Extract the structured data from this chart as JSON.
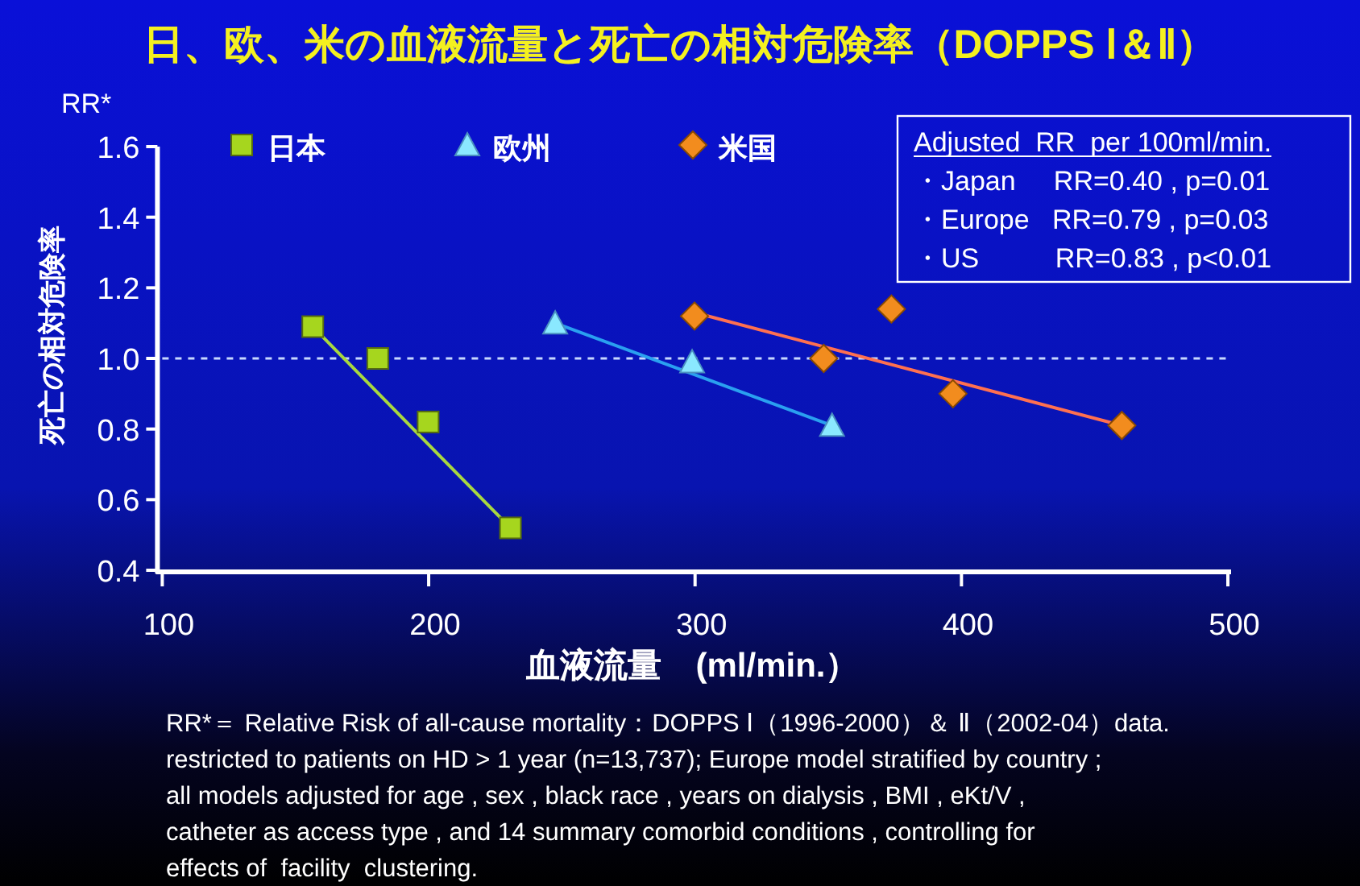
{
  "chart_data": {
    "type": "scatter",
    "title": "日、欧、米の血液流量と死亡の相対危険率（DOPPS Ⅰ＆Ⅱ）",
    "xlabel": "血液流量　(ml/min.）",
    "ylabel": "死亡の相対危険率",
    "xlim": [
      100,
      500
    ],
    "ylim": [
      0.4,
      1.6
    ],
    "xticks": [
      100,
      200,
      300,
      400,
      500
    ],
    "yticks": [
      {
        "value": 0.4,
        "label": "0.4"
      },
      {
        "value": 0.6,
        "label": "0.6"
      },
      {
        "value": 0.8,
        "label": "0.8"
      },
      {
        "value": 1.0,
        "label": "1.0"
      },
      {
        "value": 1.2,
        "label": "1.2"
      },
      {
        "value": 1.4,
        "label": "1.4"
      },
      {
        "value": 1.6,
        "label": "1.6"
      }
    ],
    "grid": false,
    "legend": "top left",
    "series": [
      {
        "name": "日本",
        "type": "scatter",
        "marker": "square",
        "color": "#a6d61e",
        "x": [
          156.5,
          180.9,
          199.8,
          230.7
        ],
        "values": [
          1.09,
          1.0,
          0.82,
          0.52
        ]
      },
      {
        "name": "欧州",
        "type": "scatter",
        "marker": "triangle",
        "color": "#8ae8ff",
        "x": [
          247.5,
          298.9,
          351.4
        ],
        "values": [
          1.1,
          0.99,
          0.81
        ]
      },
      {
        "name": "米国",
        "type": "scatter",
        "marker": "diamond",
        "color": "#f28c1e",
        "x": [
          299.8,
          348.3,
          373.7,
          396.8,
          460.2
        ],
        "values": [
          1.12,
          1.0,
          1.14,
          0.9,
          0.81
        ]
      },
      {
        "type": "line",
        "color": "#a8d840",
        "x": [
          156.5,
          230.7
        ],
        "values": [
          1.09,
          0.52
        ]
      },
      {
        "type": "line",
        "color": "#2aa0f0",
        "x": [
          247.5,
          351.4
        ],
        "values": [
          1.1,
          0.81
        ]
      },
      {
        "type": "line",
        "color": "#ff7050",
        "x": [
          299.8,
          460.2
        ],
        "values": [
          1.13,
          0.81
        ]
      }
    ],
    "ref_lines": [
      {
        "axis": "y",
        "value": 1.0,
        "color": "#c8d8ff",
        "line_style": "dashed"
      }
    ],
    "annotations": [
      "Adjusted  RR  per 100ml/min.",
      "・Japan     RR=0.40 , p=0.01",
      "・Europe   RR=0.79 , p=0.03",
      "・US          RR=0.83 , p<0.01",
      "RR*",
      "RR*＝ Relative Risk of all-cause mortality：DOPPS Ⅰ（1996-2000）＆ Ⅱ（2002-04）data.",
      "restricted to patients on HD > 1 year (n=13,737); Europe model stratified by country ;",
      "all models adjusted for age , sex , black race , years on dialysis , BMI , eKt/V ,",
      "catheter as access type , and 14 summary comorbid conditions , controlling for",
      "effects of  facility  clustering."
    ]
  }
}
